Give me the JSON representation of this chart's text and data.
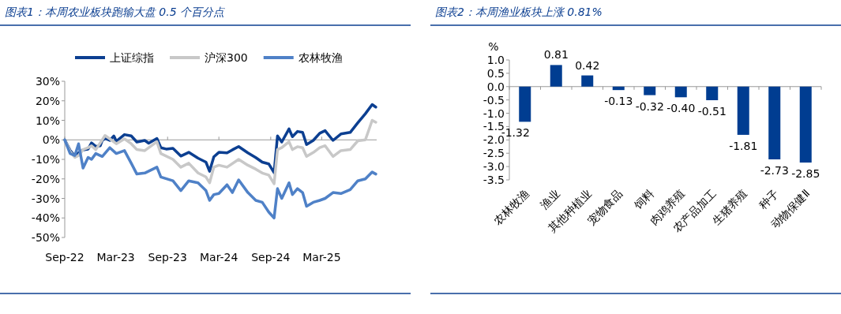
{
  "chart_data": [
    {
      "type": "line",
      "title": "图表1：本周农业板块跑输大盘 0.5 个百分点",
      "legend": "top",
      "marker": "none",
      "line_style": "solid",
      "xlim": [
        "2022-09-01",
        "2025-09-12"
      ],
      "xticks": [
        {
          "value": "2022-09-01",
          "label": "Sep-22"
        },
        {
          "value": "2023-03-01",
          "label": "Mar-23"
        },
        {
          "value": "2023-09-01",
          "label": "Sep-23"
        },
        {
          "value": "2024-03-01",
          "label": "Mar-24"
        },
        {
          "value": "2024-09-01",
          "label": "Sep-24"
        },
        {
          "value": "2025-03-01",
          "label": "Mar-25"
        }
      ],
      "ylim": [
        -50,
        30
      ],
      "yticks": [
        {
          "value": 30,
          "label": "30%"
        },
        {
          "value": 20,
          "label": "20%"
        },
        {
          "value": 10,
          "label": "10%"
        },
        {
          "value": 0,
          "label": "0%"
        },
        {
          "value": -10,
          "label": "-10%"
        },
        {
          "value": -20,
          "label": "-20%"
        },
        {
          "value": -30,
          "label": "-30%"
        },
        {
          "value": -40,
          "label": "-40%"
        },
        {
          "value": -50,
          "label": "-50%"
        }
      ],
      "series": [
        {
          "name": "上证综指",
          "color": "#0c3f91",
          "x": [
            "2022-09-01",
            "2022-09-20",
            "2022-10-07",
            "2022-10-20",
            "2022-11-05",
            "2022-11-23",
            "2022-12-05",
            "2022-12-20",
            "2023-01-05",
            "2023-01-12",
            "2023-01-22",
            "2023-02-08",
            "2023-02-22",
            "2023-03-03",
            "2023-04-01",
            "2023-04-25",
            "2023-05-15",
            "2023-06-12",
            "2023-06-26",
            "2023-07-25",
            "2023-08-08",
            "2023-08-27",
            "2023-09-20",
            "2023-10-18",
            "2023-11-15",
            "2023-12-18",
            "2024-01-15",
            "2024-01-28",
            "2024-02-12",
            "2024-03-01",
            "2024-03-30",
            "2024-04-18",
            "2024-05-10",
            "2024-06-12",
            "2024-07-10",
            "2024-08-02",
            "2024-08-25",
            "2024-09-13",
            "2024-09-25",
            "2024-10-10",
            "2024-11-05",
            "2024-11-17",
            "2024-12-05",
            "2024-12-23",
            "2025-01-06",
            "2025-01-30",
            "2025-02-22",
            "2025-03-13",
            "2025-04-10",
            "2025-05-08",
            "2025-06-10",
            "2025-07-07",
            "2025-08-03",
            "2025-08-27",
            "2025-09-09"
          ],
          "values": [
            0,
            -5.4,
            -8.3,
            -6.7,
            -5.1,
            -4.7,
            -1.6,
            -3.4,
            -3,
            -0.3,
            0.7,
            -0.3,
            2,
            -0.7,
            2.7,
            2,
            -1.1,
            -0.3,
            -1.7,
            0.7,
            -4,
            -4.7,
            -4.4,
            -8.3,
            -6.4,
            -9.4,
            -11.4,
            -16.1,
            -8.7,
            -6.4,
            -6.7,
            -5.1,
            -3.4,
            -6.7,
            -9.1,
            -11.4,
            -12.3,
            -16.8,
            2,
            -1.1,
            5.6,
            1.6,
            4.3,
            3.8,
            -2.4,
            -0.3,
            3.4,
            4.7,
            -0.3,
            3,
            3.8,
            8.7,
            13.4,
            18.1,
            16.8
          ]
        },
        {
          "name": "沪深300",
          "color": "#c8c8c8",
          "x": [
            "2022-09-01",
            "2022-09-20",
            "2022-10-07",
            "2022-10-20",
            "2022-11-05",
            "2022-11-23",
            "2022-12-05",
            "2022-12-20",
            "2023-01-12",
            "2023-01-22",
            "2023-02-08",
            "2023-03-03",
            "2023-04-01",
            "2023-04-25",
            "2023-05-15",
            "2023-06-12",
            "2023-07-25",
            "2023-08-08",
            "2023-09-20",
            "2023-10-18",
            "2023-11-15",
            "2023-12-18",
            "2024-01-15",
            "2024-01-28",
            "2024-02-12",
            "2024-03-01",
            "2024-03-30",
            "2024-05-10",
            "2024-06-12",
            "2024-07-10",
            "2024-08-02",
            "2024-08-25",
            "2024-09-13",
            "2024-09-25",
            "2024-10-10",
            "2024-11-05",
            "2024-11-17",
            "2024-12-05",
            "2024-12-23",
            "2025-01-06",
            "2025-01-30",
            "2025-02-22",
            "2025-03-13",
            "2025-04-10",
            "2025-05-08",
            "2025-06-10",
            "2025-07-07",
            "2025-08-03",
            "2025-08-27",
            "2025-09-09"
          ],
          "values": [
            0,
            -6,
            -9,
            -8,
            -5,
            -4,
            -3,
            -5,
            0,
            2.2,
            0.5,
            -2,
            0.5,
            -2,
            -5,
            -5.5,
            -1,
            -7,
            -10,
            -14,
            -12,
            -17,
            -19,
            -22,
            -14,
            -13,
            -14,
            -10,
            -13,
            -15,
            -17,
            -18,
            -22.5,
            -5,
            -4,
            -1,
            -5,
            -3.5,
            -4,
            -8.5,
            -6.5,
            -4,
            -3,
            -8.5,
            -5.5,
            -5,
            -0.5,
            0,
            10,
            9
          ]
        },
        {
          "name": "农林牧渔",
          "color": "#4f81c7",
          "x": [
            "2022-09-01",
            "2022-09-20",
            "2022-10-07",
            "2022-10-20",
            "2022-11-05",
            "2022-11-23",
            "2022-12-05",
            "2022-12-20",
            "2023-01-12",
            "2023-02-08",
            "2023-03-03",
            "2023-04-01",
            "2023-04-25",
            "2023-05-15",
            "2023-06-12",
            "2023-07-25",
            "2023-08-08",
            "2023-09-20",
            "2023-10-18",
            "2023-11-15",
            "2023-12-18",
            "2024-01-15",
            "2024-01-28",
            "2024-02-12",
            "2024-03-01",
            "2024-03-30",
            "2024-04-18",
            "2024-05-10",
            "2024-06-12",
            "2024-07-10",
            "2024-08-02",
            "2024-08-25",
            "2024-09-13",
            "2024-09-25",
            "2024-10-10",
            "2024-11-05",
            "2024-11-17",
            "2024-12-05",
            "2024-12-23",
            "2025-01-06",
            "2025-01-30",
            "2025-02-22",
            "2025-03-13",
            "2025-04-10",
            "2025-05-08",
            "2025-06-10",
            "2025-07-07",
            "2025-08-03",
            "2025-08-27",
            "2025-09-09"
          ],
          "values": [
            0,
            -7,
            -8,
            -2,
            -14.5,
            -9,
            -10,
            -7,
            -8.5,
            -4,
            -7,
            -5.5,
            -12,
            -17.5,
            -17,
            -14,
            -19,
            -21,
            -26,
            -21,
            -22,
            -26,
            -31,
            -28,
            -27.5,
            -23,
            -27,
            -20.5,
            -27,
            -31,
            -32,
            -37,
            -40,
            -25,
            -30,
            -22,
            -28,
            -25,
            -27,
            -34,
            -32,
            -31,
            -30,
            -27,
            -27.5,
            -25.5,
            -21,
            -20,
            -16.5,
            -17.5
          ]
        }
      ]
    },
    {
      "type": "bar",
      "title": "图表2：本周渔业板块上涨 0.81%",
      "ylabel": "%",
      "categories": [
        "农林牧渔",
        "渔业",
        "其他种植业",
        "宠物食品",
        "饲料",
        "肉鸡养殖",
        "农产品加工",
        "生猪养殖",
        "种子",
        "动物保健Ⅱ"
      ],
      "ylim": [
        -3.5,
        1.0
      ],
      "yticks": [
        {
          "value": 1,
          "label": "1.0"
        },
        {
          "value": 0.5,
          "label": "0.5"
        },
        {
          "value": 0,
          "label": "0.0"
        },
        {
          "value": -0.5,
          "label": "-0.5"
        },
        {
          "value": -1,
          "label": "-1.0"
        },
        {
          "value": -1.5,
          "label": "-1.5"
        },
        {
          "value": -2,
          "label": "-2.0"
        },
        {
          "value": -2.5,
          "label": "-2.5"
        },
        {
          "value": -3,
          "label": "-3.0"
        },
        {
          "value": -3.5,
          "label": "-3.5"
        }
      ],
      "series": [
        {
          "color": "#003d91",
          "values": [
            -1.32,
            0.81,
            0.42,
            -0.13,
            -0.32,
            -0.4,
            -0.51,
            -1.81,
            -2.73,
            -2.85
          ],
          "value_labels": [
            "-1.32",
            "0.81",
            "0.42",
            "-0.13",
            "-0.32",
            "-0.40",
            "-0.51",
            "-1.81",
            "-2.73",
            "-2.85"
          ]
        }
      ]
    }
  ]
}
